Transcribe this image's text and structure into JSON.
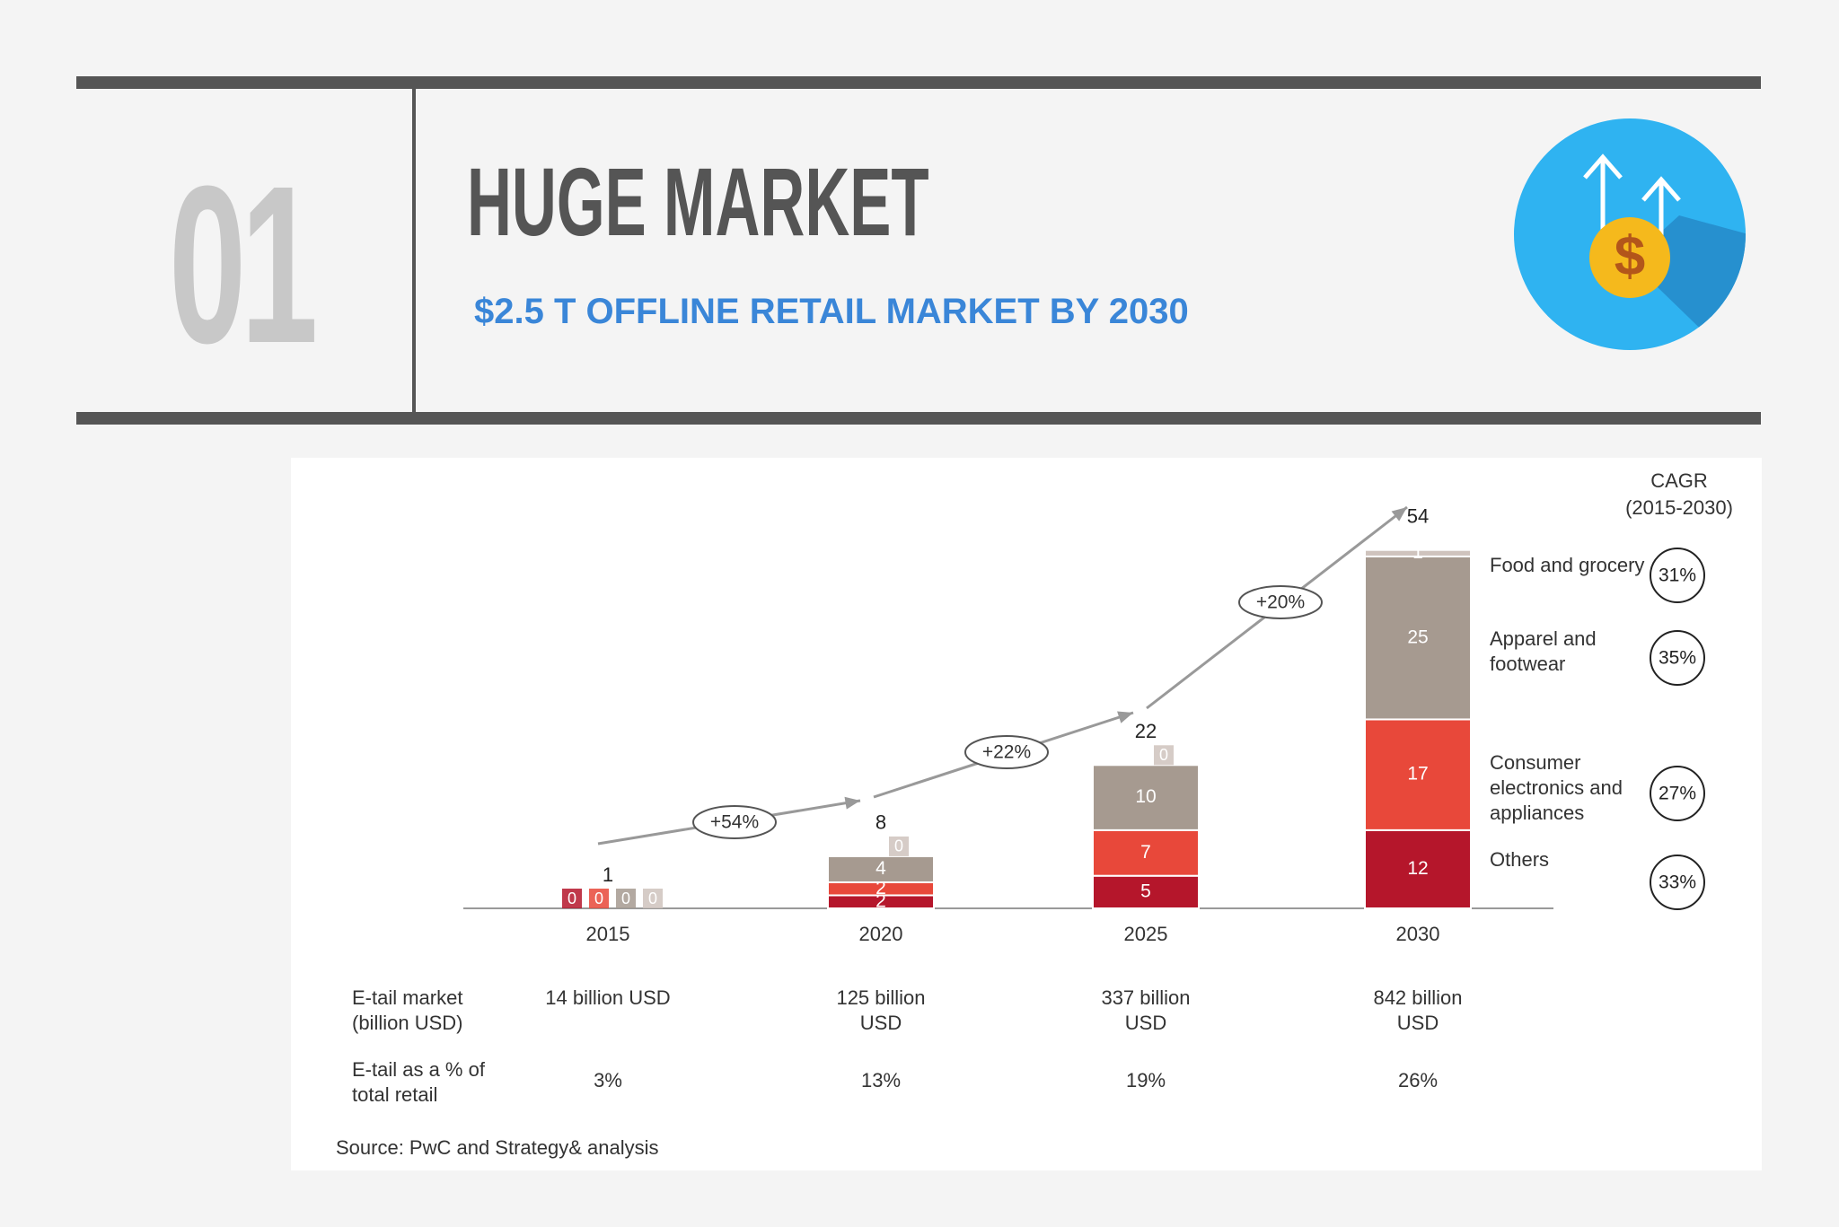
{
  "header": {
    "number": "01",
    "title": "HUGE MARKET",
    "subtitle": "$2.5 T OFFLINE RETAIL MARKET BY 2030"
  },
  "chart_data": {
    "type": "stacked-bar",
    "categories": [
      "2015",
      "2020",
      "2025",
      "2030"
    ],
    "series": [
      {
        "name": "Others",
        "color": "#b5162b",
        "values": [
          0,
          2,
          5,
          12
        ],
        "cagr": {
          "value": 33,
          "label": "33%"
        }
      },
      {
        "name": "Consumer electronics and appliances",
        "color": "#e8483a",
        "values": [
          0,
          2,
          7,
          17
        ],
        "cagr": {
          "value": 27,
          "label": "27%"
        }
      },
      {
        "name": "Apparel and footwear",
        "color": "#a69a90",
        "values": [
          0,
          4,
          10,
          25
        ],
        "cagr": {
          "value": 35,
          "label": "35%"
        }
      },
      {
        "name": "Food and grocery",
        "color": "#cfc3bd",
        "values": [
          0,
          0,
          0,
          1
        ],
        "cagr": {
          "value": 31,
          "label": "31%"
        }
      }
    ],
    "totals": [
      1,
      8,
      22,
      54
    ],
    "growth": [
      "+54%",
      "+22%",
      "+20%"
    ],
    "cagr_title": "CAGR",
    "cagr_period": "(2015-2030)",
    "source": "Source: PwC and Strategy& analysis"
  },
  "table": {
    "rows": [
      {
        "label": "E-tail market (billion USD)",
        "cells": [
          "14 billion USD",
          "125 billion USD",
          "337 billion USD",
          "842 billion USD"
        ]
      },
      {
        "label": "E-tail as a % of total retail",
        "cells": [
          "3%",
          "13%",
          "19%",
          "26%"
        ]
      }
    ]
  }
}
